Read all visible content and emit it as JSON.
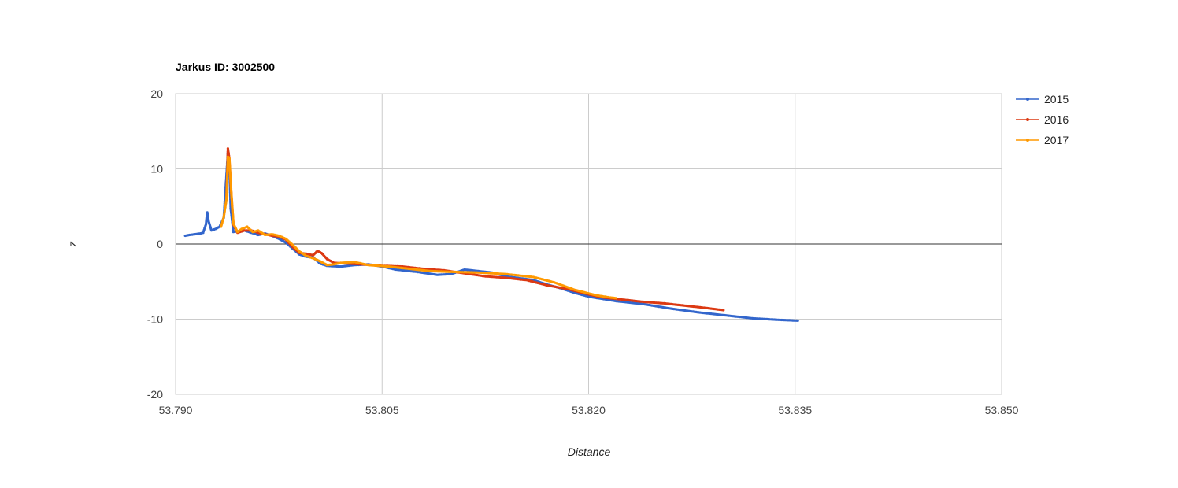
{
  "chart_data": {
    "type": "scatter",
    "title": "Jarkus ID: 3002500",
    "xlabel": "Distance",
    "ylabel": "z",
    "xlim": [
      53.79,
      53.85
    ],
    "ylim": [
      -20,
      20
    ],
    "x_ticks": [
      "53.790",
      "53.805",
      "53.820",
      "53.835",
      "53.850"
    ],
    "y_ticks": [
      "20",
      "10",
      "0",
      "-10",
      "-20"
    ],
    "grid": true,
    "legend_position": "right",
    "series": [
      {
        "name": "2015",
        "color": "#3366cc",
        "points": [
          [
            53.7907,
            1.1
          ],
          [
            53.791,
            1.2
          ],
          [
            53.7914,
            1.3
          ],
          [
            53.7918,
            1.4
          ],
          [
            53.792,
            1.5
          ],
          [
            53.7922,
            2.6
          ],
          [
            53.7923,
            4.2
          ],
          [
            53.7924,
            3.0
          ],
          [
            53.7926,
            1.8
          ],
          [
            53.7929,
            2.0
          ],
          [
            53.7932,
            2.3
          ],
          [
            53.7935,
            3.5
          ],
          [
            53.7938,
            12.2
          ],
          [
            53.7939,
            10.8
          ],
          [
            53.794,
            4.8
          ],
          [
            53.7942,
            1.6
          ],
          [
            53.7945,
            1.7
          ],
          [
            53.795,
            1.8
          ],
          [
            53.7955,
            1.5
          ],
          [
            53.796,
            1.2
          ],
          [
            53.7965,
            1.4
          ],
          [
            53.797,
            1.1
          ],
          [
            53.7975,
            0.7
          ],
          [
            53.798,
            0.2
          ],
          [
            53.7985,
            -0.6
          ],
          [
            53.799,
            -1.4
          ],
          [
            53.7995,
            -1.7
          ],
          [
            53.8,
            -1.8
          ],
          [
            53.8005,
            -2.6
          ],
          [
            53.801,
            -2.9
          ],
          [
            53.802,
            -3.0
          ],
          [
            53.803,
            -2.8
          ],
          [
            53.804,
            -2.7
          ],
          [
            53.805,
            -3.0
          ],
          [
            53.806,
            -3.4
          ],
          [
            53.8075,
            -3.7
          ],
          [
            53.809,
            -4.1
          ],
          [
            53.81,
            -4.0
          ],
          [
            53.811,
            -3.4
          ],
          [
            53.812,
            -3.6
          ],
          [
            53.813,
            -3.8
          ],
          [
            53.814,
            -4.3
          ],
          [
            53.816,
            -4.8
          ],
          [
            53.817,
            -5.4
          ],
          [
            53.818,
            -5.9
          ],
          [
            53.819,
            -6.5
          ],
          [
            53.82,
            -7.0
          ],
          [
            53.821,
            -7.3
          ],
          [
            53.822,
            -7.6
          ],
          [
            53.824,
            -8.0
          ],
          [
            53.826,
            -8.6
          ],
          [
            53.828,
            -9.1
          ],
          [
            53.83,
            -9.5
          ],
          [
            53.832,
            -9.9
          ],
          [
            53.834,
            -10.1
          ],
          [
            53.8352,
            -10.2
          ]
        ]
      },
      {
        "name": "2016",
        "color": "#dc3912",
        "points": [
          [
            53.7937,
            6.3
          ],
          [
            53.7938,
            12.7
          ],
          [
            53.7939,
            11.4
          ],
          [
            53.794,
            8.0
          ],
          [
            53.7942,
            2.6
          ],
          [
            53.7945,
            1.5
          ],
          [
            53.795,
            1.8
          ],
          [
            53.7955,
            1.8
          ],
          [
            53.796,
            1.5
          ],
          [
            53.7965,
            1.3
          ],
          [
            53.797,
            1.1
          ],
          [
            53.7975,
            1.0
          ],
          [
            53.798,
            0.6
          ],
          [
            53.7985,
            -0.4
          ],
          [
            53.799,
            -1.2
          ],
          [
            53.7995,
            -1.3
          ],
          [
            53.8,
            -1.5
          ],
          [
            53.8003,
            -0.9
          ],
          [
            53.8006,
            -1.2
          ],
          [
            53.801,
            -2.0
          ],
          [
            53.8015,
            -2.5
          ],
          [
            53.8025,
            -2.6
          ],
          [
            53.8035,
            -2.7
          ],
          [
            53.805,
            -2.9
          ],
          [
            53.8065,
            -3.0
          ],
          [
            53.808,
            -3.3
          ],
          [
            53.8095,
            -3.5
          ],
          [
            53.811,
            -3.9
          ],
          [
            53.8125,
            -4.3
          ],
          [
            53.814,
            -4.5
          ],
          [
            53.8155,
            -4.8
          ],
          [
            53.817,
            -5.5
          ],
          [
            53.8185,
            -6.0
          ],
          [
            53.82,
            -6.7
          ],
          [
            53.821,
            -7.1
          ],
          [
            53.8225,
            -7.4
          ],
          [
            53.824,
            -7.7
          ],
          [
            53.8255,
            -7.9
          ],
          [
            53.827,
            -8.2
          ],
          [
            53.8285,
            -8.5
          ],
          [
            53.8298,
            -8.8
          ]
        ]
      },
      {
        "name": "2017",
        "color": "#ff9900",
        "points": [
          [
            53.7933,
            2.3
          ],
          [
            53.7935,
            3.6
          ],
          [
            53.7937,
            6.0
          ],
          [
            53.7938,
            11.6
          ],
          [
            53.7939,
            11.5
          ],
          [
            53.794,
            8.3
          ],
          [
            53.7941,
            5.3
          ],
          [
            53.7942,
            2.7
          ],
          [
            53.7945,
            1.6
          ],
          [
            53.7948,
            2.0
          ],
          [
            53.7952,
            2.3
          ],
          [
            53.7956,
            1.6
          ],
          [
            53.796,
            1.8
          ],
          [
            53.7965,
            1.2
          ],
          [
            53.797,
            1.3
          ],
          [
            53.7975,
            1.1
          ],
          [
            53.798,
            0.7
          ],
          [
            53.7985,
            -0.1
          ],
          [
            53.799,
            -1.0
          ],
          [
            53.7995,
            -1.6
          ],
          [
            53.8,
            -1.9
          ],
          [
            53.8005,
            -2.3
          ],
          [
            53.801,
            -2.8
          ],
          [
            53.8015,
            -2.7
          ],
          [
            53.802,
            -2.5
          ],
          [
            53.803,
            -2.4
          ],
          [
            53.804,
            -2.8
          ],
          [
            53.8055,
            -3.0
          ],
          [
            53.807,
            -3.3
          ],
          [
            53.8085,
            -3.6
          ],
          [
            53.81,
            -3.7
          ],
          [
            53.812,
            -3.8
          ],
          [
            53.814,
            -4.0
          ],
          [
            53.816,
            -4.4
          ],
          [
            53.8175,
            -5.1
          ],
          [
            53.819,
            -6.1
          ],
          [
            53.8205,
            -6.8
          ],
          [
            53.8215,
            -7.1
          ],
          [
            53.822,
            -7.2
          ]
        ]
      }
    ]
  }
}
